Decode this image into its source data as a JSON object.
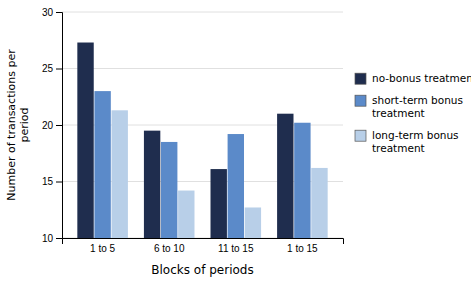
{
  "chart_data": {
    "type": "bar",
    "categories": [
      "1 to 5",
      "6 to 10",
      "11 to 15",
      "1 to 15"
    ],
    "series": [
      {
        "name": "no-bonus treatment",
        "color": "#1f2d4e",
        "values": [
          27.3,
          19.5,
          16.1,
          21.0
        ]
      },
      {
        "name": "short-term bonus\ntreatment",
        "color": "#5b8ac9",
        "values": [
          23.0,
          18.5,
          19.2,
          20.2
        ]
      },
      {
        "name": "long-term bonus\ntreatment",
        "color": "#b8cfe8",
        "values": [
          21.3,
          14.2,
          12.7,
          16.2
        ]
      }
    ],
    "y_label": "Number of transactions per\nperiod",
    "x_label": "Blocks of periods",
    "ylim": [
      10,
      30
    ],
    "yticks": [
      10,
      15,
      20,
      25,
      30
    ],
    "grid": true,
    "legend": "right"
  }
}
